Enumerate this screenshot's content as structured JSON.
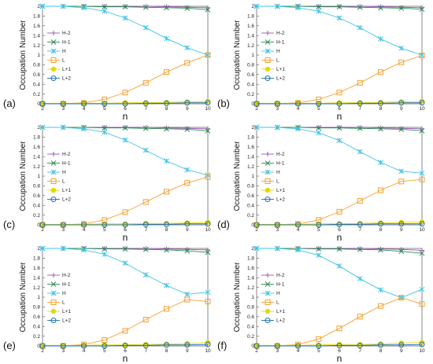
{
  "colors": {
    "H-2": "#9b59b6",
    "H-1": "#2e8b57",
    "H": "#3fc3e6",
    "L": "#f5a030",
    "L+1": "#e6d800",
    "L+2": "#1f6fb4"
  },
  "markers": {
    "H-2": "plus",
    "H-1": "cross",
    "H": "asterisk",
    "L": "square",
    "L+1": "filled-circle",
    "L+2": "circle"
  },
  "chart_data": [
    {
      "type": "line",
      "panel_label": "(a)",
      "xlabel": "n",
      "ylabel": "Occupation Number",
      "xlim": [
        2,
        10
      ],
      "ylim": [
        0,
        2
      ],
      "xticks": [
        2,
        3,
        4,
        5,
        6,
        7,
        8,
        9,
        10
      ],
      "yticks": [
        0,
        0.2,
        0.4,
        0.6,
        0.8,
        1,
        1.2,
        1.4,
        1.6,
        1.8,
        2
      ],
      "x": [
        2,
        3,
        4,
        5,
        6,
        7,
        8,
        9,
        10
      ],
      "legend": "right",
      "series": [
        {
          "name": "H-2",
          "values": [
            2.0,
            2.0,
            2.0,
            2.0,
            2.0,
            2.0,
            1.99,
            1.98,
            1.97
          ]
        },
        {
          "name": "H-1",
          "values": [
            2.0,
            2.0,
            2.0,
            1.99,
            1.99,
            1.98,
            1.97,
            1.96,
            1.93
          ]
        },
        {
          "name": "H",
          "values": [
            2.0,
            2.0,
            1.97,
            1.9,
            1.76,
            1.56,
            1.34,
            1.15,
            1.0
          ]
        },
        {
          "name": "L",
          "values": [
            0.0,
            0.0,
            0.02,
            0.09,
            0.23,
            0.43,
            0.65,
            0.84,
            1.0
          ]
        },
        {
          "name": "L+1",
          "values": [
            0.01,
            0.01,
            0.01,
            0.01,
            0.02,
            0.02,
            0.03,
            0.04,
            0.05
          ]
        },
        {
          "name": "L+2",
          "values": [
            0.0,
            0.0,
            0.0,
            0.0,
            0.0,
            0.01,
            0.01,
            0.02,
            0.02
          ]
        }
      ]
    },
    {
      "type": "line",
      "panel_label": "(b)",
      "xlabel": "n",
      "ylabel": "Occupation Number",
      "xlim": [
        2,
        10
      ],
      "ylim": [
        0,
        2
      ],
      "xticks": [
        2,
        3,
        4,
        5,
        6,
        7,
        8,
        9,
        10
      ],
      "yticks": [
        0,
        0.2,
        0.4,
        0.6,
        0.8,
        1,
        1.2,
        1.4,
        1.6,
        1.8,
        2
      ],
      "x": [
        2,
        3,
        4,
        5,
        6,
        7,
        8,
        9,
        10
      ],
      "legend": "right",
      "series": [
        {
          "name": "H-2",
          "values": [
            2.0,
            2.0,
            2.0,
            2.0,
            2.0,
            2.0,
            1.99,
            1.98,
            1.97
          ]
        },
        {
          "name": "H-1",
          "values": [
            2.0,
            2.0,
            2.0,
            1.99,
            1.99,
            1.98,
            1.97,
            1.96,
            1.94
          ]
        },
        {
          "name": "H",
          "values": [
            2.0,
            2.0,
            1.97,
            1.9,
            1.76,
            1.56,
            1.33,
            1.14,
            1.0
          ]
        },
        {
          "name": "L",
          "values": [
            0.0,
            0.0,
            0.02,
            0.09,
            0.23,
            0.43,
            0.65,
            0.85,
            0.99
          ]
        },
        {
          "name": "L+1",
          "values": [
            0.01,
            0.01,
            0.01,
            0.01,
            0.02,
            0.02,
            0.03,
            0.04,
            0.05
          ]
        },
        {
          "name": "L+2",
          "values": [
            0.0,
            0.0,
            0.0,
            0.0,
            0.0,
            0.01,
            0.01,
            0.02,
            0.02
          ]
        }
      ]
    },
    {
      "type": "line",
      "panel_label": "(c)",
      "xlabel": "n",
      "ylabel": "Occupation Number",
      "xlim": [
        2,
        10
      ],
      "ylim": [
        0,
        2
      ],
      "xticks": [
        2,
        3,
        4,
        5,
        6,
        7,
        8,
        9,
        10
      ],
      "yticks": [
        0,
        0.2,
        0.4,
        0.6,
        0.8,
        1,
        1.2,
        1.4,
        1.6,
        1.8,
        2
      ],
      "x": [
        2,
        3,
        4,
        5,
        6,
        7,
        8,
        9,
        10
      ],
      "legend": "right",
      "series": [
        {
          "name": "H-2",
          "values": [
            2.0,
            2.0,
            2.0,
            2.0,
            2.0,
            2.0,
            1.99,
            1.98,
            1.97
          ]
        },
        {
          "name": "H-1",
          "values": [
            2.0,
            2.0,
            2.0,
            1.99,
            1.99,
            1.98,
            1.97,
            1.96,
            1.93
          ]
        },
        {
          "name": "H",
          "values": [
            2.0,
            2.0,
            1.97,
            1.9,
            1.74,
            1.53,
            1.31,
            1.13,
            1.02
          ]
        },
        {
          "name": "L",
          "values": [
            0.0,
            0.0,
            0.02,
            0.1,
            0.26,
            0.47,
            0.68,
            0.86,
            0.98
          ]
        },
        {
          "name": "L+1",
          "values": [
            0.01,
            0.01,
            0.01,
            0.02,
            0.02,
            0.03,
            0.03,
            0.04,
            0.05
          ]
        },
        {
          "name": "L+2",
          "values": [
            0.0,
            0.0,
            0.0,
            0.0,
            0.0,
            0.01,
            0.01,
            0.02,
            0.02
          ]
        }
      ]
    },
    {
      "type": "line",
      "panel_label": "(d)",
      "xlabel": "n",
      "ylabel": "Occupation Number",
      "xlim": [
        2,
        10
      ],
      "ylim": [
        0,
        2
      ],
      "xticks": [
        2,
        3,
        4,
        5,
        6,
        7,
        8,
        9,
        10
      ],
      "yticks": [
        0,
        0.2,
        0.4,
        0.6,
        0.8,
        1,
        1.2,
        1.4,
        1.6,
        1.8,
        2
      ],
      "x": [
        2,
        3,
        4,
        5,
        6,
        7,
        8,
        9,
        10
      ],
      "legend": "right",
      "series": [
        {
          "name": "H-2",
          "values": [
            2.0,
            2.0,
            2.0,
            2.0,
            2.0,
            2.0,
            1.99,
            1.98,
            1.97
          ]
        },
        {
          "name": "H-1",
          "values": [
            2.0,
            2.0,
            2.0,
            1.99,
            1.99,
            1.98,
            1.97,
            1.96,
            1.93
          ]
        },
        {
          "name": "H",
          "values": [
            2.0,
            2.0,
            1.97,
            1.89,
            1.73,
            1.5,
            1.28,
            1.1,
            1.06
          ]
        },
        {
          "name": "L",
          "values": [
            0.0,
            0.0,
            0.02,
            0.1,
            0.27,
            0.49,
            0.71,
            0.89,
            0.93
          ]
        },
        {
          "name": "L+1",
          "values": [
            0.01,
            0.01,
            0.01,
            0.02,
            0.02,
            0.03,
            0.04,
            0.05,
            0.06
          ]
        },
        {
          "name": "L+2",
          "values": [
            0.0,
            0.0,
            0.0,
            0.0,
            0.01,
            0.01,
            0.02,
            0.02,
            0.02
          ]
        }
      ]
    },
    {
      "type": "line",
      "panel_label": "(e)",
      "xlabel": "n",
      "ylabel": "Occupation Number",
      "xlim": [
        2,
        10
      ],
      "ylim": [
        0,
        2
      ],
      "xticks": [
        2,
        3,
        4,
        5,
        6,
        7,
        8,
        9,
        10
      ],
      "yticks": [
        0,
        0.2,
        0.4,
        0.6,
        0.8,
        1,
        1.2,
        1.4,
        1.6,
        1.8,
        2
      ],
      "x": [
        2,
        3,
        4,
        5,
        6,
        7,
        8,
        9,
        10
      ],
      "legend": "right",
      "series": [
        {
          "name": "H-2",
          "values": [
            2.0,
            2.0,
            2.0,
            2.0,
            2.0,
            2.0,
            1.99,
            1.98,
            1.97
          ]
        },
        {
          "name": "H-1",
          "values": [
            2.0,
            2.0,
            2.0,
            1.99,
            1.99,
            1.98,
            1.97,
            1.95,
            1.92
          ]
        },
        {
          "name": "H",
          "values": [
            2.0,
            2.0,
            1.97,
            1.88,
            1.7,
            1.46,
            1.24,
            1.06,
            1.1
          ]
        },
        {
          "name": "L",
          "values": [
            0.0,
            0.0,
            0.03,
            0.12,
            0.31,
            0.54,
            0.76,
            0.95,
            0.91
          ]
        },
        {
          "name": "L+1",
          "values": [
            0.01,
            0.01,
            0.01,
            0.02,
            0.02,
            0.03,
            0.04,
            0.05,
            0.07
          ]
        },
        {
          "name": "L+2",
          "values": [
            0.0,
            0.0,
            0.0,
            0.0,
            0.01,
            0.01,
            0.02,
            0.02,
            0.03
          ]
        }
      ]
    },
    {
      "type": "line",
      "panel_label": "(f)",
      "xlabel": "n",
      "ylabel": "Occupation Number",
      "xlim": [
        2,
        10
      ],
      "ylim": [
        0,
        2
      ],
      "xticks": [
        2,
        3,
        4,
        5,
        6,
        7,
        8,
        9,
        10
      ],
      "yticks": [
        0,
        0.2,
        0.4,
        0.6,
        0.8,
        1,
        1.2,
        1.4,
        1.6,
        1.8,
        2
      ],
      "x": [
        2,
        3,
        4,
        5,
        6,
        7,
        8,
        9,
        10
      ],
      "legend": "right",
      "series": [
        {
          "name": "H-2",
          "values": [
            2.0,
            2.0,
            2.0,
            2.0,
            2.0,
            2.0,
            1.99,
            1.98,
            1.96
          ]
        },
        {
          "name": "H-1",
          "values": [
            2.0,
            2.0,
            2.0,
            1.99,
            1.99,
            1.98,
            1.97,
            1.94,
            1.9
          ]
        },
        {
          "name": "H",
          "values": [
            2.0,
            2.0,
            1.97,
            1.86,
            1.64,
            1.38,
            1.15,
            0.99,
            1.16
          ]
        },
        {
          "name": "L",
          "values": [
            0.0,
            0.0,
            0.03,
            0.14,
            0.36,
            0.6,
            0.82,
            0.99,
            0.86
          ]
        },
        {
          "name": "L+1",
          "values": [
            0.01,
            0.01,
            0.01,
            0.02,
            0.03,
            0.03,
            0.04,
            0.06,
            0.07
          ]
        },
        {
          "name": "L+2",
          "values": [
            0.0,
            0.0,
            0.0,
            0.0,
            0.01,
            0.01,
            0.02,
            0.02,
            0.03
          ]
        }
      ]
    }
  ]
}
